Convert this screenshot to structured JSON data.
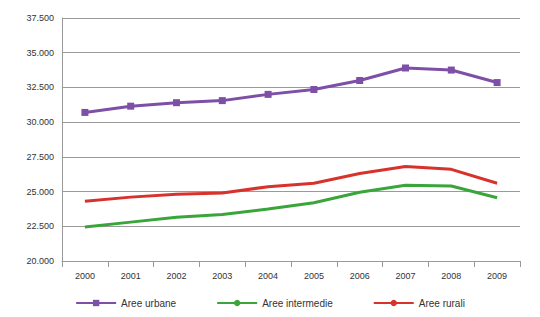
{
  "chart_data": {
    "type": "line",
    "categories": [
      "2000",
      "2001",
      "2002",
      "2003",
      "2004",
      "2005",
      "2006",
      "2007",
      "2008",
      "2009"
    ],
    "series": [
      {
        "name": "Aree urbane",
        "color": "#7d4fa6",
        "marker": "square",
        "values": [
          30700,
          31150,
          31400,
          31550,
          32000,
          32350,
          33000,
          33900,
          33750,
          32850
        ]
      },
      {
        "name": "Aree intermedie",
        "color": "#3aa53a",
        "marker": "none",
        "values": [
          22450,
          22800,
          23150,
          23350,
          23750,
          24200,
          24950,
          25450,
          25400,
          24550
        ]
      },
      {
        "name": "Aree rurali",
        "color": "#d7322b",
        "marker": "none",
        "values": [
          24300,
          24600,
          24800,
          24900,
          25350,
          25600,
          26300,
          26800,
          26600,
          25600
        ]
      }
    ],
    "ylim": [
      20000,
      37500
    ],
    "yticks": [
      {
        "value": 20000,
        "label": "20.000"
      },
      {
        "value": 22500,
        "label": "22.500"
      },
      {
        "value": 25000,
        "label": "25.000"
      },
      {
        "value": 27500,
        "label": "27.500"
      },
      {
        "value": 30000,
        "label": "30.000"
      },
      {
        "value": 32500,
        "label": "32.500"
      },
      {
        "value": 35000,
        "label": "35.000"
      },
      {
        "value": 37500,
        "label": "37.500"
      }
    ],
    "grid": true,
    "legend": "bottom"
  }
}
